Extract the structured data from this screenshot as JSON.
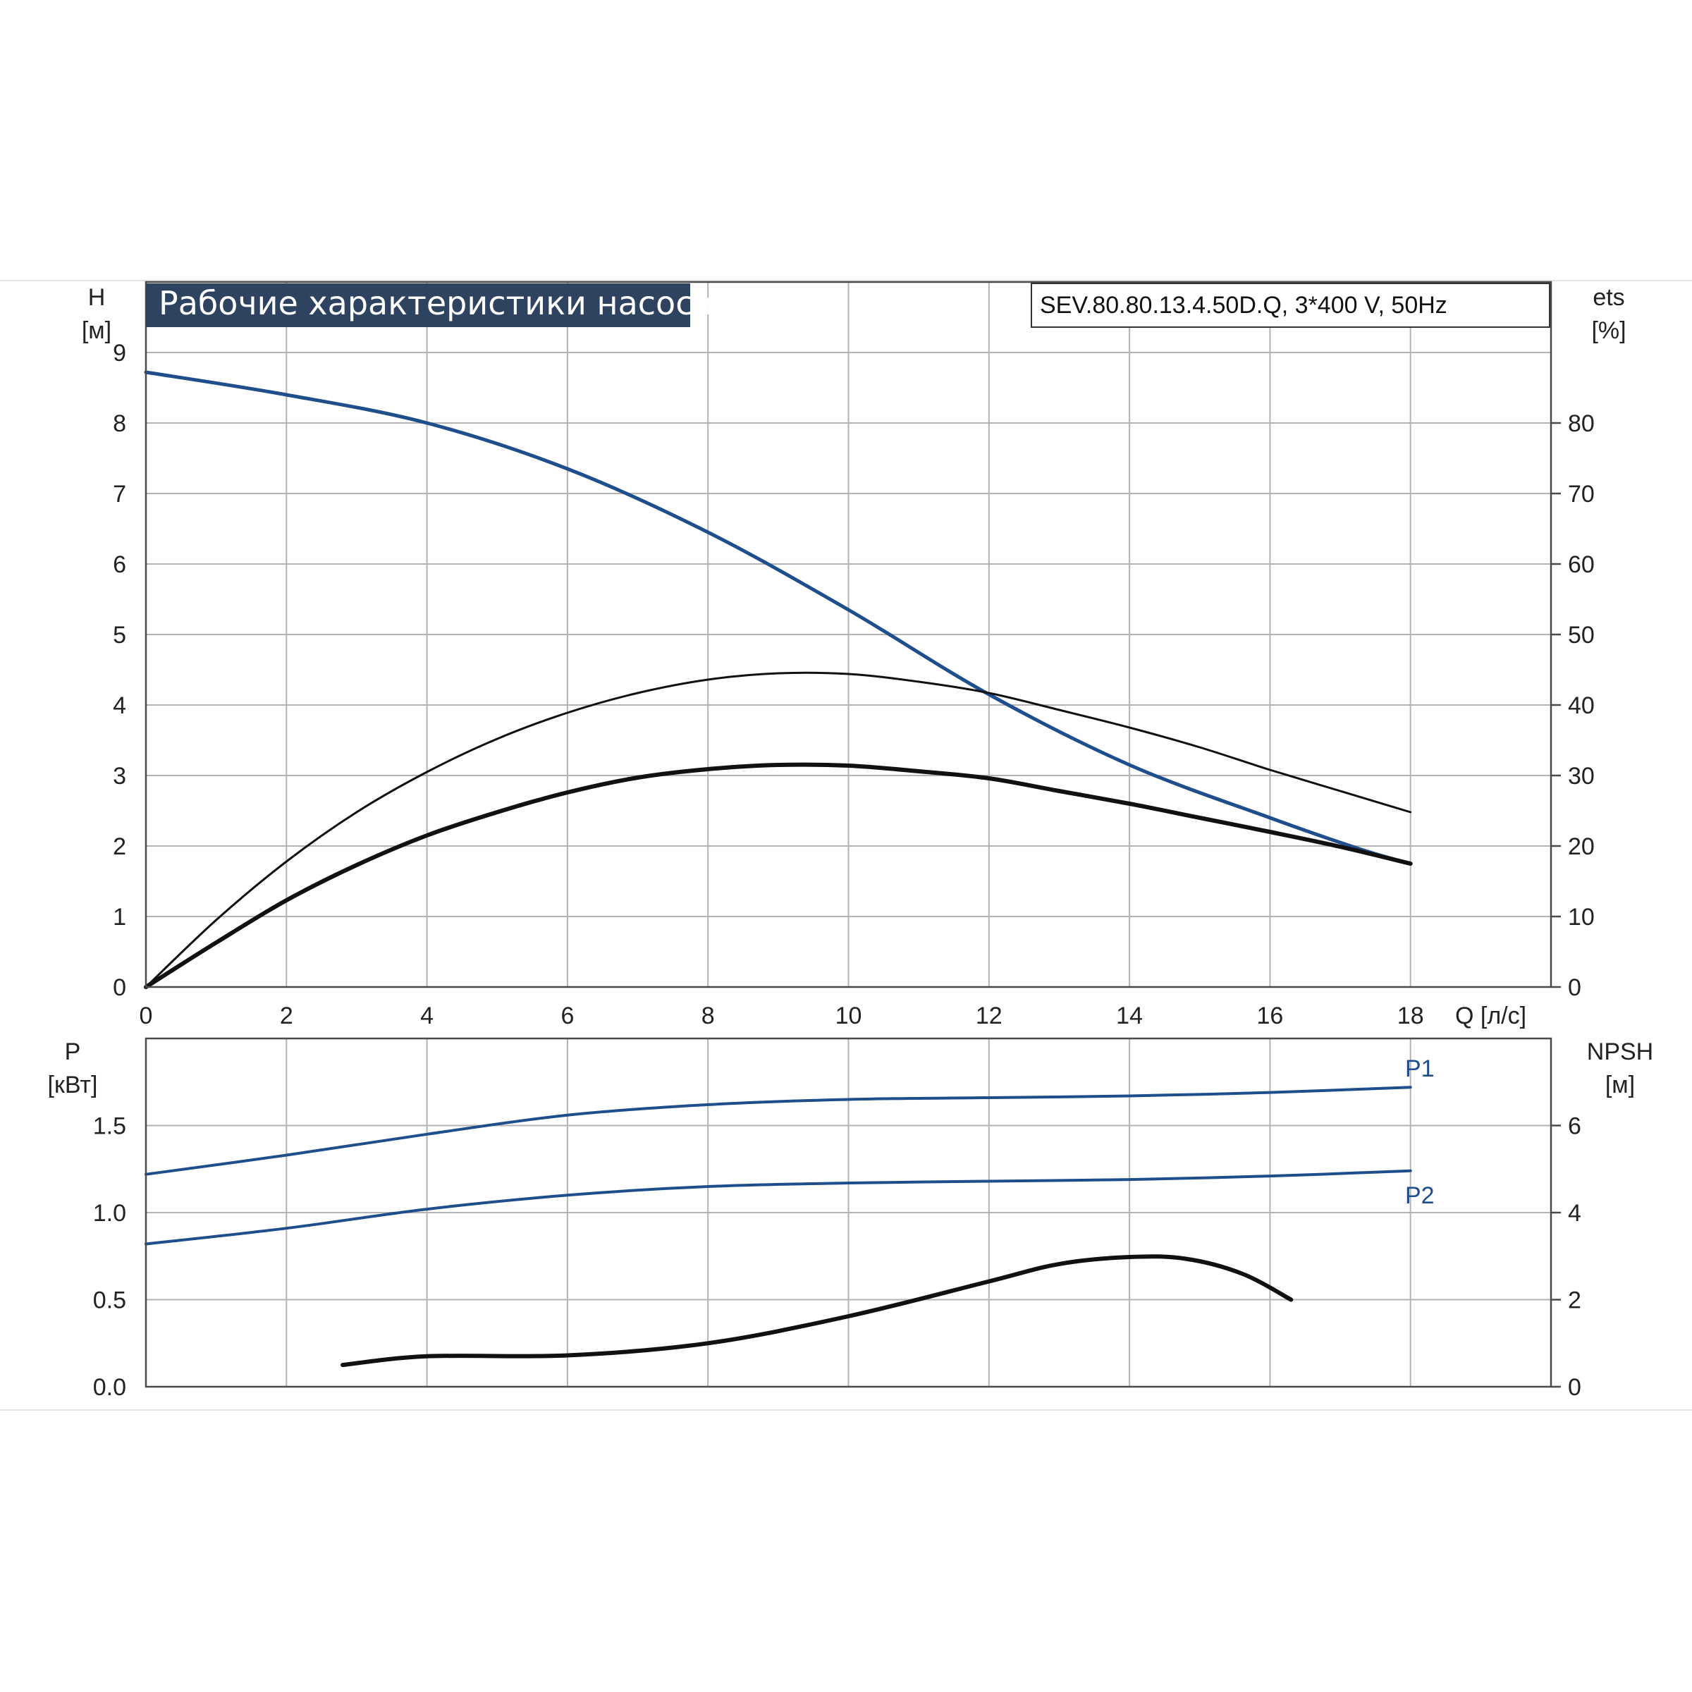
{
  "colors": {
    "blue_curve": "#1f4e8c",
    "black_curve": "#111111",
    "title_bg": "#2e4360",
    "title_text": "#ffffff",
    "grid": "#b3b3b3"
  },
  "title": "Рабочие характеристики насоса",
  "model_label": "SEV.80.80.13.4.50D.Q, 3*400 V, 50Hz",
  "chart_data": [
    {
      "type": "line",
      "panel": "upper",
      "x_axis": {
        "label": "Q [л/с]",
        "range": [
          0,
          20
        ],
        "ticks": [
          "0",
          "2",
          "4",
          "6",
          "8",
          "10",
          "12",
          "14",
          "16",
          "18"
        ]
      },
      "y_left": {
        "label_top": "H",
        "label_unit": "[м]",
        "range": [
          0,
          10
        ],
        "ticks": [
          "0",
          "1",
          "2",
          "3",
          "4",
          "5",
          "6",
          "7",
          "8",
          "9"
        ]
      },
      "y_right": {
        "label_top": "ets",
        "label_unit": "[%]",
        "range": [
          0,
          100
        ],
        "ticks": [
          "0",
          "10",
          "20",
          "30",
          "40",
          "50",
          "60",
          "70",
          "80"
        ]
      },
      "grid": true,
      "series": [
        {
          "key": "head",
          "axis": "left",
          "color": "#1f4e8c",
          "x": [
            0,
            2,
            4,
            6,
            8,
            10,
            12,
            14,
            16,
            17.3,
            18
          ],
          "y": [
            8.72,
            8.4,
            8.0,
            7.35,
            6.45,
            5.35,
            4.15,
            3.15,
            2.4,
            1.95,
            1.75
          ]
        },
        {
          "key": "efficiency_thin",
          "axis": "right",
          "color": "#111111",
          "x": [
            0,
            1,
            2,
            3,
            4,
            5,
            6,
            7,
            8,
            9,
            10,
            11,
            12,
            13,
            14,
            15,
            16,
            17,
            18
          ],
          "y": [
            0,
            9.5,
            17.8,
            24.8,
            30.5,
            35.2,
            38.9,
            41.7,
            43.6,
            44.5,
            44.4,
            43.3,
            41.7,
            39.3,
            36.8,
            34.0,
            30.8,
            27.8,
            24.8
          ]
        },
        {
          "key": "efficiency_thick",
          "axis": "right",
          "color": "#111111",
          "x": [
            0,
            1,
            2,
            3,
            4,
            5,
            6,
            7,
            8,
            9,
            10,
            11,
            12,
            13,
            14,
            15,
            16,
            17,
            18
          ],
          "y": [
            0,
            6.3,
            12.3,
            17.3,
            21.5,
            24.8,
            27.6,
            29.7,
            30.9,
            31.5,
            31.4,
            30.6,
            29.6,
            27.8,
            26.0,
            24.0,
            22.0,
            19.9,
            17.5
          ]
        }
      ]
    },
    {
      "type": "line",
      "panel": "lower",
      "x_axis": {
        "range": [
          0,
          20
        ]
      },
      "y_left": {
        "label_top": "P",
        "label_unit": "[кВт]",
        "range": [
          0,
          2.0
        ],
        "ticks": [
          "0.0",
          "0.5",
          "1.0",
          "1.5"
        ]
      },
      "y_right": {
        "label_top": "NPSH",
        "label_unit": "[м]",
        "range": [
          0,
          8
        ],
        "ticks": [
          "0",
          "2",
          "4",
          "6"
        ]
      },
      "grid": true,
      "series": [
        {
          "name": "P1",
          "axis": "left",
          "color": "#1f4e8c",
          "x": [
            0,
            2,
            4,
            6,
            8,
            10,
            12,
            14,
            16,
            18
          ],
          "y": [
            1.22,
            1.33,
            1.45,
            1.56,
            1.62,
            1.65,
            1.66,
            1.67,
            1.69,
            1.72
          ]
        },
        {
          "name": "P2",
          "axis": "left",
          "color": "#1f4e8c",
          "x": [
            0,
            2,
            4,
            6,
            8,
            10,
            12,
            14,
            16,
            18
          ],
          "y": [
            0.82,
            0.91,
            1.02,
            1.1,
            1.15,
            1.17,
            1.18,
            1.19,
            1.21,
            1.24
          ]
        },
        {
          "key": "npsh",
          "axis": "right",
          "color": "#111111",
          "x": [
            2.8,
            4,
            6,
            8,
            10,
            12,
            13,
            14,
            14.8,
            15.6,
            16.3
          ],
          "y": [
            0.5,
            0.7,
            0.72,
            1.0,
            1.62,
            2.42,
            2.82,
            2.98,
            2.94,
            2.6,
            2.0
          ]
        }
      ]
    }
  ]
}
